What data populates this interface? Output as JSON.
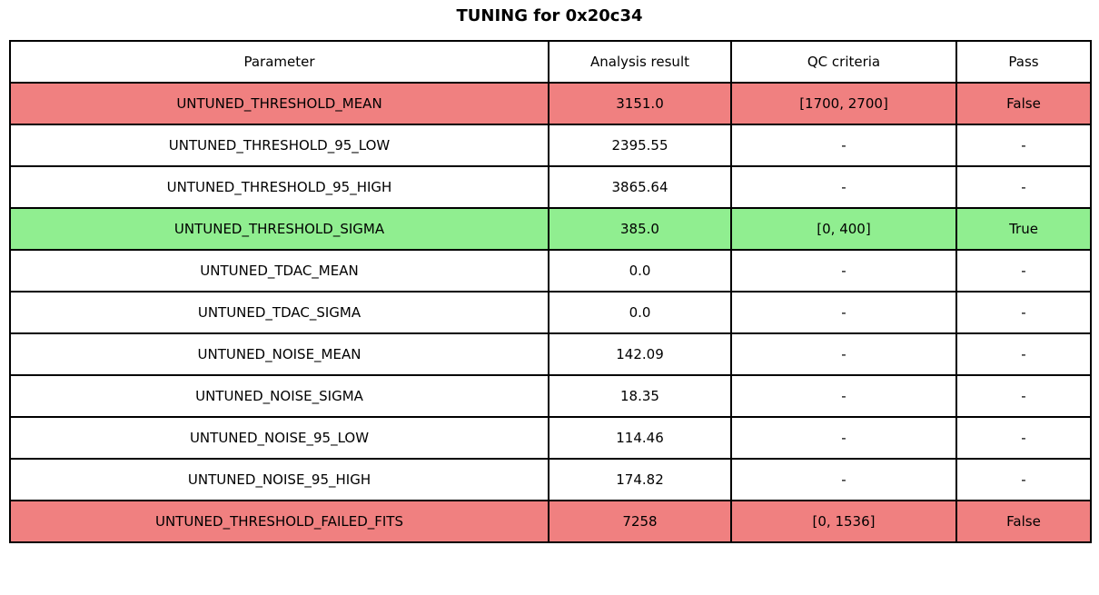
{
  "title": "TUNING for 0x20c34",
  "colors": {
    "fail": "#f08080",
    "pass": "#90ee90",
    "border": "#000000",
    "background": "#ffffff"
  },
  "chart_data": {
    "type": "table",
    "title": "TUNING for 0x20c34",
    "columns": [
      "Parameter",
      "Analysis result",
      "QC criteria",
      "Pass"
    ],
    "rows": [
      {
        "parameter": "UNTUNED_THRESHOLD_MEAN",
        "result": "3151.0",
        "qc": "[1700, 2700]",
        "pass": "False",
        "status": "fail"
      },
      {
        "parameter": "UNTUNED_THRESHOLD_95_LOW",
        "result": "2395.55",
        "qc": "-",
        "pass": "-",
        "status": "none"
      },
      {
        "parameter": "UNTUNED_THRESHOLD_95_HIGH",
        "result": "3865.64",
        "qc": "-",
        "pass": "-",
        "status": "none"
      },
      {
        "parameter": "UNTUNED_THRESHOLD_SIGMA",
        "result": "385.0",
        "qc": "[0, 400]",
        "pass": "True",
        "status": "pass"
      },
      {
        "parameter": "UNTUNED_TDAC_MEAN",
        "result": "0.0",
        "qc": "-",
        "pass": "-",
        "status": "none"
      },
      {
        "parameter": "UNTUNED_TDAC_SIGMA",
        "result": "0.0",
        "qc": "-",
        "pass": "-",
        "status": "none"
      },
      {
        "parameter": "UNTUNED_NOISE_MEAN",
        "result": "142.09",
        "qc": "-",
        "pass": "-",
        "status": "none"
      },
      {
        "parameter": "UNTUNED_NOISE_SIGMA",
        "result": "18.35",
        "qc": "-",
        "pass": "-",
        "status": "none"
      },
      {
        "parameter": "UNTUNED_NOISE_95_LOW",
        "result": "114.46",
        "qc": "-",
        "pass": "-",
        "status": "none"
      },
      {
        "parameter": "UNTUNED_NOISE_95_HIGH",
        "result": "174.82",
        "qc": "-",
        "pass": "-",
        "status": "none"
      },
      {
        "parameter": "UNTUNED_THRESHOLD_FAILED_FITS",
        "result": "7258",
        "qc": "[0, 1536]",
        "pass": "False",
        "status": "fail"
      }
    ]
  }
}
